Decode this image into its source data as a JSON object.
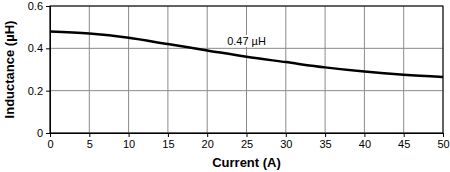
{
  "chart_data": {
    "type": "line",
    "x_label": "Current (A)",
    "y_label": "Inductance (µH)",
    "x": [
      0,
      5,
      10,
      15,
      20,
      25,
      30,
      35,
      40,
      45,
      50
    ],
    "values": [
      0.48,
      0.47,
      0.45,
      0.42,
      0.39,
      0.36,
      0.335,
      0.31,
      0.29,
      0.275,
      0.265
    ],
    "color": "#000000",
    "xlim": [
      0,
      50
    ],
    "ylim": [
      0,
      0.6
    ],
    "xticks": [
      0,
      5,
      10,
      15,
      20,
      25,
      30,
      35,
      40,
      45,
      50
    ],
    "yticks": [
      0,
      0.2,
      0.4,
      0.6
    ],
    "grid": true,
    "annotations": [
      {
        "text": "0.47 µH",
        "x": 25,
        "y": 0.43
      }
    ]
  }
}
